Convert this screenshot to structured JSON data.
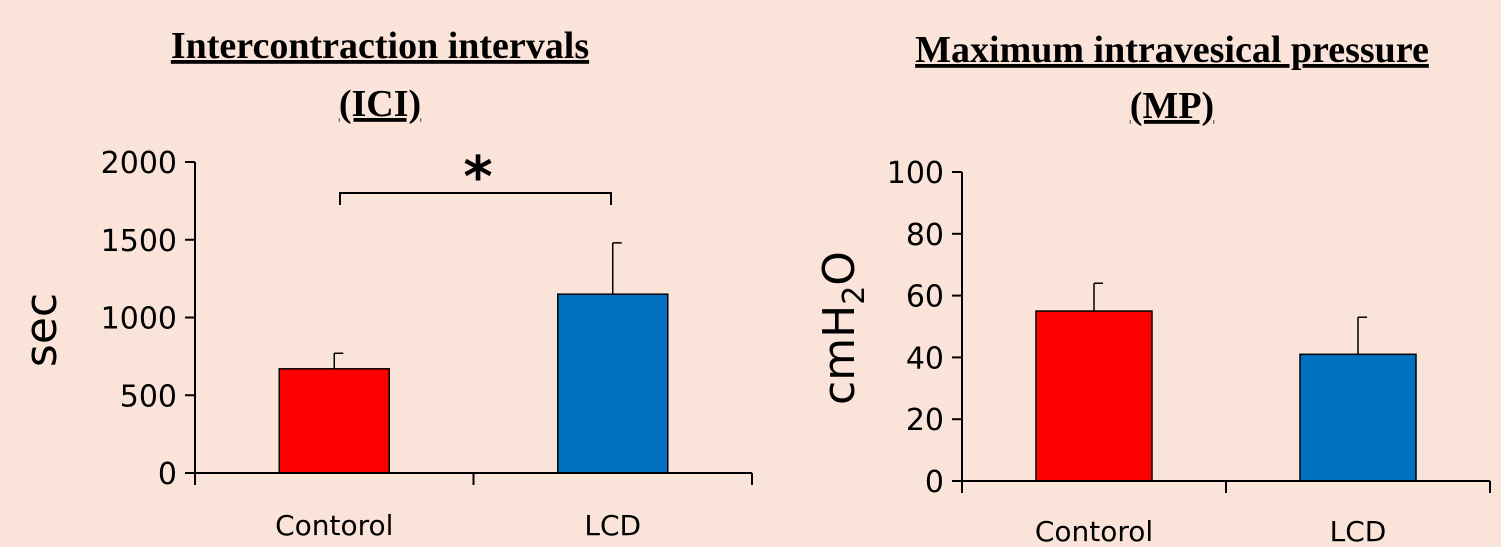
{
  "chart_data": [
    {
      "type": "bar",
      "title_line1": "Intercontraction intervals",
      "title_line2": "(ICI)",
      "ylabel": "sec",
      "categories": [
        "Contorol",
        "LCD"
      ],
      "values": [
        670,
        1150
      ],
      "error": [
        100,
        330
      ],
      "colors": [
        "#ff0000",
        "#0070c0"
      ],
      "ylim": [
        0,
        2000
      ],
      "yticks": [
        0,
        500,
        1000,
        1500,
        2000
      ],
      "significance": "*"
    },
    {
      "type": "bar",
      "title_line1": "Maximum intravesical pressure",
      "title_line2": "(MP)",
      "ylabel_main": "cmH",
      "ylabel_sub": "2",
      "ylabel_tail": "O",
      "categories": [
        "Contorol",
        "LCD"
      ],
      "values": [
        55,
        41
      ],
      "error": [
        9,
        12
      ],
      "colors": [
        "#ff0000",
        "#0070c0"
      ],
      "ylim": [
        0,
        100
      ],
      "yticks": [
        0,
        20,
        40,
        60,
        80,
        100
      ]
    }
  ]
}
